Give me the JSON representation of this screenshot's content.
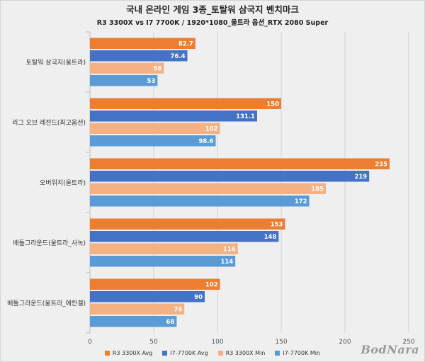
{
  "title": "국내 온라인 게임 3종_토탈워 삼국지 벤치마크",
  "subtitle": "R3 3300X vs I7 7700K / 1920*1080_울트라 옵션_RTX 2080 Super",
  "watermark": "BodNara",
  "chart_data": {
    "type": "bar",
    "orientation": "horizontal",
    "categories": [
      "토탈워 삼국지(울트라)",
      "리그 오브 레전드(최고옵션)",
      "오버워치(울트라)",
      "배틀그라운드(울트라_사녹)",
      "배틀그라운드(울트라_에란겔)"
    ],
    "series": [
      {
        "name": "R3 3300X Avg",
        "color": "#ed7d31",
        "values": [
          82.7,
          150,
          235,
          153,
          102
        ]
      },
      {
        "name": "I7-7700K Avg",
        "color": "#4472c4",
        "values": [
          76.4,
          131.1,
          219,
          148,
          90
        ]
      },
      {
        "name": "R3 3300X Min",
        "color": "#f4b183",
        "values": [
          58,
          102,
          185,
          116,
          74
        ]
      },
      {
        "name": "I7-7700K Min",
        "color": "#5b9bd5",
        "values": [
          53,
          98.6,
          172,
          114,
          68
        ]
      }
    ],
    "value_labels": [
      [
        "82.7",
        "150",
        "235",
        "153",
        "102"
      ],
      [
        "76.4",
        "131.1",
        "219",
        "148",
        "90"
      ],
      [
        "58",
        "102",
        "185",
        "116",
        "74"
      ],
      [
        "53",
        "98.6",
        "172",
        "114",
        "68"
      ]
    ],
    "xlim": [
      0,
      250
    ],
    "xticks": [
      "0",
      "50",
      "100",
      "150",
      "200",
      "250"
    ],
    "grid": true,
    "legend_position": "bottom"
  }
}
